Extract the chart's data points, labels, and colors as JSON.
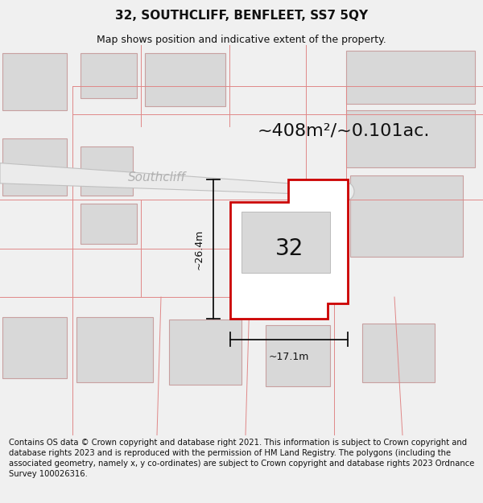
{
  "title": "32, SOUTHCLIFF, BENFLEET, SS7 5QY",
  "subtitle": "Map shows position and indicative extent of the property.",
  "footer": "Contains OS data © Crown copyright and database right 2021. This information is subject to Crown copyright and database rights 2023 and is reproduced with the permission of HM Land Registry. The polygons (including the associated geometry, namely x, y co-ordinates) are subject to Crown copyright and database rights 2023 Ordnance Survey 100026316.",
  "area_text": "~408m²/~0.101ac.",
  "label_32": "32",
  "dim_height": "~26.4m",
  "dim_width": "~17.1m",
  "road_label": "Southcliff",
  "fig_bg": "#f0f0f0",
  "map_bg": "#ffffff",
  "plot_edge_color": "#cc0000",
  "building_color": "#d8d8d8",
  "building_edge_color": "#c8a0a0",
  "boundary_color": "#e08888",
  "dim_line_color": "#111111",
  "road_fill": "#e8e8e8",
  "road_stroke": "#c8c8c8",
  "road_text_color": "#aaaaaa",
  "title_fontsize": 11,
  "subtitle_fontsize": 9,
  "footer_fontsize": 7.2,
  "area_fontsize": 16,
  "label_fontsize": 20,
  "dim_fontsize": 9
}
